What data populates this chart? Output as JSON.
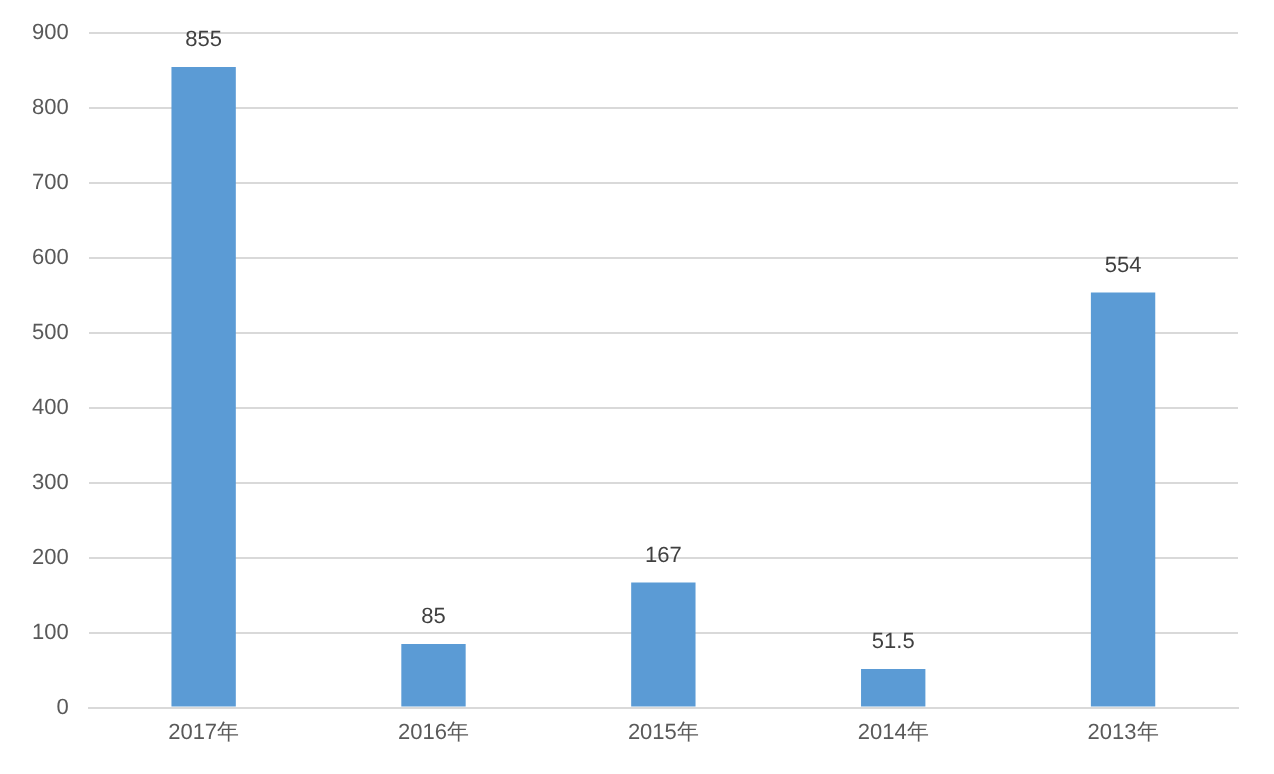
{
  "chart_data": {
    "type": "bar",
    "categories": [
      "2017年",
      "2016年",
      "2015年",
      "2014年",
      "2013年"
    ],
    "values": [
      855,
      85,
      167,
      51.5,
      554
    ],
    "color": "#5b9bd5",
    "ylim": [
      0,
      900
    ],
    "yticks": [
      0,
      100,
      200,
      300,
      400,
      500,
      600,
      700,
      800,
      900
    ],
    "grid": "y",
    "data_labels": true
  }
}
